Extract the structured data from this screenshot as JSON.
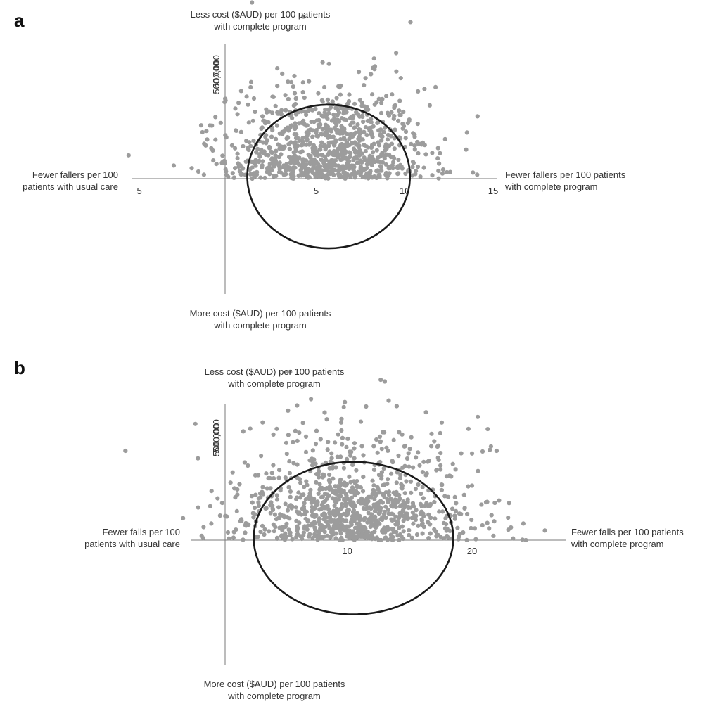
{
  "chart_data": [
    {
      "panel": "a",
      "type": "scatter",
      "title": "",
      "xlabel": "",
      "ylabel": "",
      "quadrant_labels": {
        "top": [
          "Less cost ($AUD) per 100 patients",
          "with complete program"
        ],
        "bottom": [
          "More cost ($AUD) per 100 patients",
          "with complete program"
        ],
        "left": [
          "Fewer fallers per 100",
          "patients with usual care"
        ],
        "right": [
          "Fewer fallers per 100 patients",
          "with complete program"
        ]
      },
      "xticks": [
        {
          "label": "5",
          "value": -5
        },
        {
          "label": "5",
          "value": 5
        },
        {
          "label": "10",
          "value": 10
        },
        {
          "label": "15",
          "value": 15
        }
      ],
      "yticks": [
        {
          "label": "500,000",
          "value": 500000
        },
        {
          "label": "500,000",
          "value": -500000
        }
      ],
      "xlim": [
        -5.4,
        15.2
      ],
      "ylim": [
        -570000,
        630000
      ],
      "ellipse": {
        "cx": 5.7,
        "cy": 10000,
        "rx": 4.6,
        "ry": 335000
      },
      "points": {
        "count": 1000,
        "center": [
          5.7,
          10000
        ],
        "spread": [
          2.8,
          210000
        ]
      }
    },
    {
      "panel": "b",
      "type": "scatter",
      "title": "",
      "xlabel": "",
      "ylabel": "",
      "quadrant_labels": {
        "top": [
          "Less cost ($AUD) per 100 patients",
          "with complete program"
        ],
        "bottom": [
          "More cost ($AUD) per 100 patients",
          "with complete program"
        ],
        "left": [
          "Fewer falls per 100",
          "patients with usual care"
        ],
        "right": [
          "Fewer falls per 100 patients",
          "with complete program"
        ]
      },
      "xticks": [
        {
          "label": "10",
          "value": 10
        },
        {
          "label": "20",
          "value": 20
        }
      ],
      "yticks": [
        {
          "label": "500,000",
          "value": 500000
        },
        {
          "label": "500,000",
          "value": -500000
        }
      ],
      "xlim": [
        -2.5,
        27.5
      ],
      "ylim": [
        -600000,
        680000
      ],
      "ellipse": {
        "cx": 10.5,
        "cy": 10000,
        "rx": 8.0,
        "ry": 380000
      },
      "points": {
        "count": 1000,
        "center": [
          10.5,
          10000
        ],
        "spread": [
          4.8,
          240000
        ]
      }
    }
  ],
  "colors": {
    "points": "#9c9c9c",
    "ellipse": "#1a1a1a",
    "axis": "#7a7a7a"
  }
}
